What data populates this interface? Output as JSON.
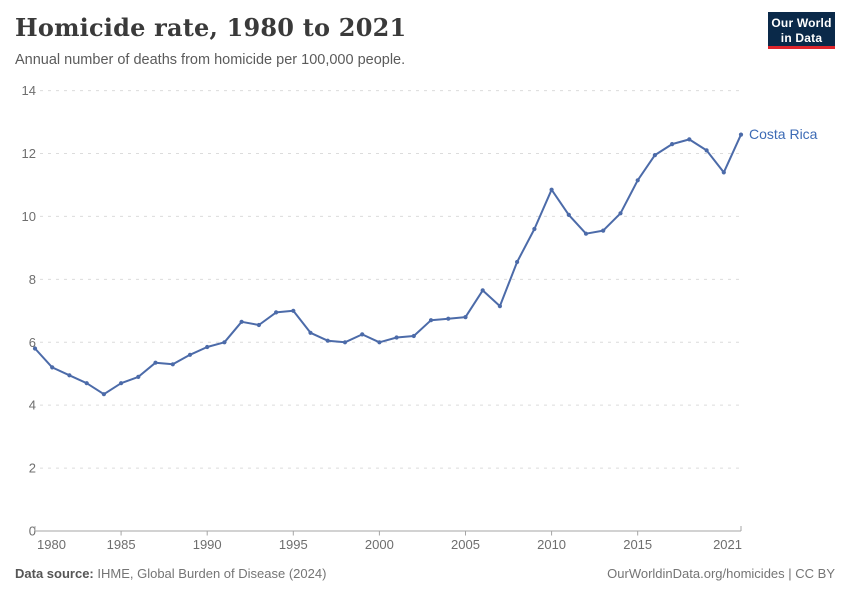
{
  "header": {
    "title": "Homicide rate, 1980 to 2021",
    "subtitle": "Annual number of deaths from homicide per 100,000 people.",
    "logo": {
      "line1": "Our World",
      "line2": "in Data",
      "bg_color": "#0a2949",
      "stripe_color": "#e0252c"
    }
  },
  "chart_data": {
    "type": "line",
    "title": "Homicide rate, 1980 to 2021",
    "subtitle": "Annual number of deaths from homicide per 100,000 people.",
    "xlabel": "",
    "ylabel": "",
    "xlim": [
      1980,
      2021
    ],
    "ylim": [
      0,
      14
    ],
    "x_ticks": [
      1980,
      1985,
      1990,
      1995,
      2000,
      2005,
      2010,
      2015,
      2021
    ],
    "y_ticks": [
      0,
      2,
      4,
      6,
      8,
      10,
      12,
      14
    ],
    "grid": "horizontal-dashed",
    "legend_position": "end-of-line-label",
    "series": [
      {
        "name": "Costa Rica",
        "color": "#4c6ba9",
        "label_color": "#3d6bb5",
        "x": [
          1980,
          1981,
          1982,
          1983,
          1984,
          1985,
          1986,
          1987,
          1988,
          1989,
          1990,
          1991,
          1992,
          1993,
          1994,
          1995,
          1996,
          1997,
          1998,
          1999,
          2000,
          2001,
          2002,
          2003,
          2004,
          2005,
          2006,
          2007,
          2008,
          2009,
          2010,
          2011,
          2012,
          2013,
          2014,
          2015,
          2016,
          2017,
          2018,
          2019,
          2020,
          2021
        ],
        "values": [
          5.8,
          5.2,
          4.95,
          4.7,
          4.35,
          4.7,
          4.9,
          5.35,
          5.3,
          5.6,
          5.85,
          6.0,
          6.65,
          6.55,
          6.95,
          7.0,
          6.3,
          6.05,
          6.0,
          6.25,
          6.0,
          6.15,
          6.2,
          6.7,
          6.75,
          6.8,
          7.65,
          7.15,
          8.55,
          9.6,
          10.85,
          10.05,
          9.45,
          9.55,
          10.1,
          11.15,
          11.95,
          12.3,
          12.45,
          12.1,
          11.4,
          12.6
        ]
      }
    ]
  },
  "footer": {
    "source_label": "Data source:",
    "source_text": " IHME, Global Burden of Disease (2024)",
    "credit": "OurWorldinData.org/homicides | CC BY"
  }
}
